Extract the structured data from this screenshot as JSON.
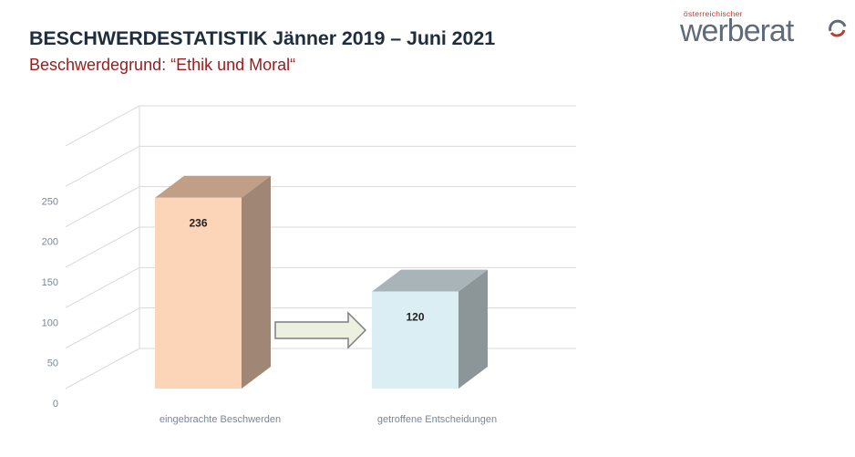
{
  "header": {
    "title": "BESCHWERDESTATISTIK Jänner 2019 – Juni 2021",
    "subtitle": "Beschwerdegrund: “Ethik und Moral“"
  },
  "logo": {
    "small_text": "österreichischer",
    "main_text": "werberat"
  },
  "chart_data": {
    "type": "bar",
    "categories": [
      "eingebrachte Beschwerden",
      "getroffene Entscheidungen"
    ],
    "values": [
      236,
      120
    ],
    "data_labels": [
      "236",
      "120"
    ],
    "yticks": [
      "0",
      "50",
      "100",
      "150",
      "200",
      "250"
    ],
    "ylim": [
      0,
      300
    ],
    "grid": true,
    "legend": "none",
    "annotation": "arrow from first bar to second bar",
    "colors": {
      "bar1_front": "#fcd5b8",
      "bar1_top": "#c19f86",
      "bar1_side": "#a08674",
      "bar2_front": "#daeef3",
      "bar2_top": "#a9b4b8",
      "bar2_side": "#8c9598",
      "arrow_fill": "#ebf1de",
      "arrow_stroke": "#7f7f7f",
      "grid": "#d9d9d9"
    }
  }
}
